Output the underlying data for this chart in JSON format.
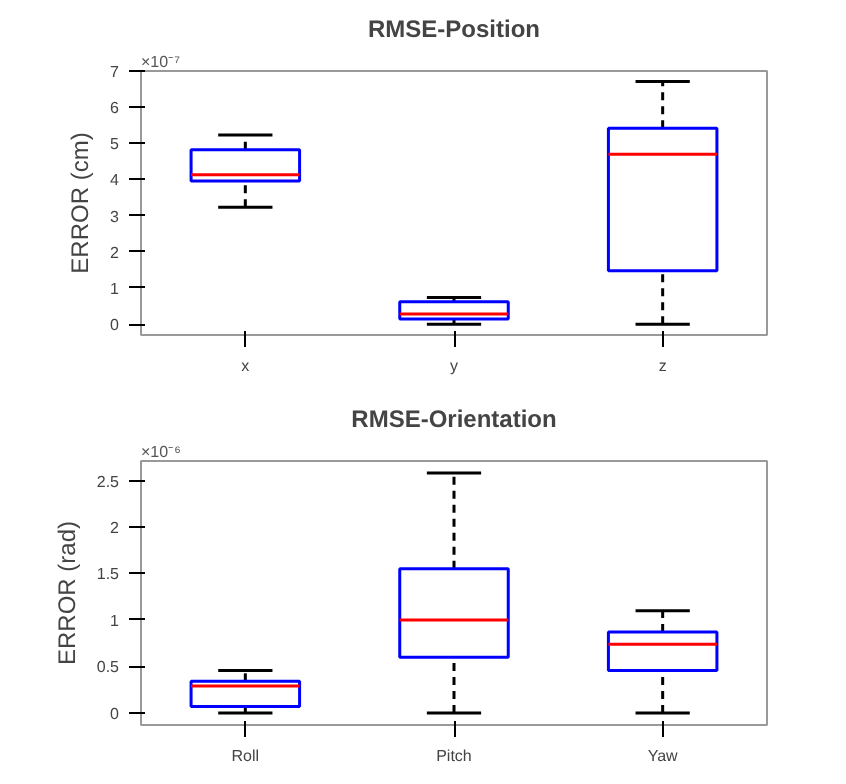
{
  "chart_data": [
    {
      "type": "box",
      "title": "RMSE-Position",
      "ylabel": "ERROR (cm)",
      "annotations": [
        "×10⁻⁷"
      ],
      "categories": [
        "x",
        "y",
        "z"
      ],
      "ylim": [
        -0.3,
        7
      ],
      "yticks": [
        0,
        1,
        2,
        3,
        4,
        5,
        6,
        7
      ],
      "grid": false,
      "series": [
        {
          "color": "#0000ff",
          "boxes": [
            {
              "low": 3.23,
              "q1": 3.96,
              "median": 4.13,
              "q3": 4.82,
              "high": 5.23
            },
            {
              "low": 0,
              "q1": 0.14,
              "median": 0.28,
              "q3": 0.62,
              "high": 0.74
            },
            {
              "low": 0,
              "q1": 1.48,
              "median": 4.7,
              "q3": 5.42,
              "high": 6.71
            }
          ]
        }
      ]
    },
    {
      "type": "box",
      "title": "RMSE-Orientation",
      "ylabel": "ERROR (rad)",
      "annotations": [
        "×10⁻⁶"
      ],
      "categories": [
        "Roll",
        "Pitch",
        "Yaw"
      ],
      "ylim": [
        -0.13,
        2.71
      ],
      "yticks": [
        0,
        0.5,
        1,
        1.5,
        2,
        2.5
      ],
      "grid": false,
      "series": [
        {
          "color": "#0000ff",
          "boxes": [
            {
              "low": 0,
              "q1": 0.07,
              "median": 0.29,
              "q3": 0.34,
              "high": 0.455
            },
            {
              "low": 0,
              "q1": 0.6,
              "median": 1.0,
              "q3": 1.55,
              "high": 2.58
            },
            {
              "low": 0,
              "q1": 0.455,
              "median": 0.74,
              "q3": 0.87,
              "high": 1.1
            }
          ]
        }
      ]
    }
  ]
}
